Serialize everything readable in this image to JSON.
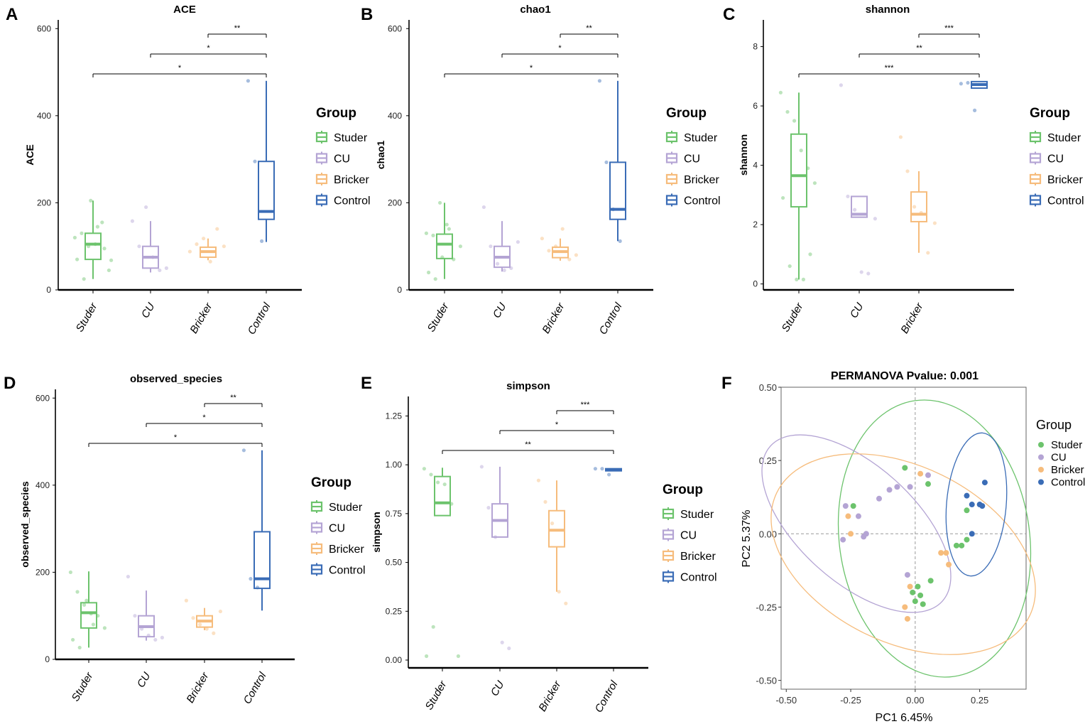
{
  "colors": {
    "Studer": "#6cc36c",
    "CU": "#b4a4d4",
    "Bricker": "#f6bc7c",
    "Control": "#3a6cb6"
  },
  "groups": [
    "Studer",
    "CU",
    "Bricker",
    "Control"
  ],
  "chart_data": [
    {
      "type": "box",
      "panel": "A",
      "title": "ACE",
      "ylabel": "ACE",
      "ylim": [
        0,
        620
      ],
      "yticks": [
        0,
        200,
        400,
        600
      ],
      "categories": [
        "Studer",
        "CU",
        "Bricker",
        "Control"
      ],
      "boxes": [
        {
          "group": "Studer",
          "min": 25,
          "q1": 70,
          "median": 105,
          "q3": 130,
          "max": 205
        },
        {
          "group": "CU",
          "min": 40,
          "q1": 50,
          "median": 75,
          "q3": 100,
          "max": 158
        },
        {
          "group": "Bricker",
          "min": 68,
          "q1": 75,
          "median": 88,
          "q3": 98,
          "max": 118
        },
        {
          "group": "Control",
          "min": 110,
          "q1": 162,
          "median": 180,
          "q3": 295,
          "max": 480
        }
      ],
      "points": [
        {
          "group": "Studer",
          "y": [
            120,
            130,
            100,
            105,
            155,
            45,
            70,
            25,
            205,
            145,
            95,
            68
          ]
        },
        {
          "group": "CU",
          "y": [
            158,
            100,
            190,
            75,
            45,
            50
          ]
        },
        {
          "group": "Bricker",
          "y": [
            88,
            105,
            118,
            65,
            140,
            100
          ]
        },
        {
          "group": "Control",
          "y": [
            480,
            295,
            112
          ]
        }
      ],
      "significance": [
        {
          "from": "Control",
          "to": "Bricker",
          "label": "**"
        },
        {
          "from": "Control",
          "to": "CU",
          "label": "*"
        },
        {
          "from": "Control",
          "to": "Studer",
          "label": "*"
        }
      ],
      "legend_title": "Group",
      "legend": [
        "Studer",
        "CU",
        "Bricker",
        "Control"
      ]
    },
    {
      "type": "box",
      "panel": "B",
      "title": "chao1",
      "ylabel": "chao1",
      "ylim": [
        0,
        620
      ],
      "yticks": [
        0,
        200,
        400,
        600
      ],
      "categories": [
        "Studer",
        "CU",
        "Bricker",
        "Control"
      ],
      "boxes": [
        {
          "group": "Studer",
          "min": 25,
          "q1": 72,
          "median": 105,
          "q3": 128,
          "max": 200
        },
        {
          "group": "CU",
          "min": 42,
          "q1": 52,
          "median": 75,
          "q3": 100,
          "max": 158
        },
        {
          "group": "Bricker",
          "min": 67,
          "q1": 74,
          "median": 88,
          "q3": 98,
          "max": 118
        },
        {
          "group": "Control",
          "min": 112,
          "q1": 162,
          "median": 185,
          "q3": 293,
          "max": 480
        }
      ],
      "points": [
        {
          "group": "Studer",
          "y": [
            130,
            125,
            200,
            150,
            70,
            100,
            40,
            25,
            75,
            140
          ]
        },
        {
          "group": "CU",
          "y": [
            190,
            100,
            60,
            45,
            50,
            110
          ]
        },
        {
          "group": "Bricker",
          "y": [
            118,
            90,
            100,
            140,
            70,
            80
          ]
        },
        {
          "group": "Control",
          "y": [
            480,
            293,
            185,
            112
          ]
        }
      ],
      "significance": [
        {
          "from": "Control",
          "to": "Bricker",
          "label": "**"
        },
        {
          "from": "Control",
          "to": "CU",
          "label": "*"
        },
        {
          "from": "Control",
          "to": "Studer",
          "label": "*"
        }
      ],
      "legend_title": "Group",
      "legend": [
        "Studer",
        "CU",
        "Bricker",
        "Control"
      ]
    },
    {
      "type": "box",
      "panel": "C",
      "title": "shannon",
      "ylabel": "shannon",
      "ylim": [
        -0.2,
        8.9
      ],
      "yticks": [
        0,
        2,
        4,
        6,
        8
      ],
      "categories": [
        "Studer",
        "CU",
        "Bricker"
      ],
      "boxes": [
        {
          "group": "Studer",
          "min": 0.15,
          "q1": 2.6,
          "median": 3.65,
          "q3": 5.05,
          "max": 6.45
        },
        {
          "group": "CU",
          "min": 2.25,
          "q1": 2.25,
          "median": 2.35,
          "q3": 2.95,
          "max": 2.95
        },
        {
          "group": "Bricker",
          "min": 1.05,
          "q1": 2.1,
          "median": 2.35,
          "q3": 3.1,
          "max": 3.8
        },
        {
          "group": "Control",
          "min": 6.6,
          "q1": 6.6,
          "median": 6.72,
          "q3": 6.82,
          "max": 6.82
        }
      ],
      "points": [
        {
          "group": "Studer",
          "y": [
            6.45,
            5.8,
            5.5,
            4.5,
            3.9,
            3.4,
            2.9,
            0.6,
            0.15,
            0.15,
            1.0
          ]
        },
        {
          "group": "CU",
          "y": [
            6.7,
            2.95,
            2.5,
            0.4,
            0.35,
            2.2
          ]
        },
        {
          "group": "Bricker",
          "y": [
            4.95,
            3.8,
            2.6,
            2.4,
            1.05,
            2.05
          ]
        },
        {
          "group": "Control",
          "y": [
            6.75,
            6.78,
            5.85
          ]
        }
      ],
      "significance": [
        {
          "from": "Control",
          "to": "Bricker",
          "label": "***"
        },
        {
          "from": "Control",
          "to": "CU",
          "label": "**"
        },
        {
          "from": "Control",
          "to": "Studer",
          "label": "***"
        }
      ],
      "legend_title": "Group",
      "legend": [
        "Studer",
        "CU",
        "Bricker",
        "Control"
      ]
    },
    {
      "type": "box",
      "panel": "D",
      "title": "observed_species",
      "ylabel": "observed_species",
      "ylim": [
        0,
        620
      ],
      "yticks": [
        0,
        200,
        400,
        600
      ],
      "categories": [
        "Studer",
        "CU",
        "Bricker",
        "Control"
      ],
      "boxes": [
        {
          "group": "Studer",
          "min": 27,
          "q1": 72,
          "median": 107,
          "q3": 130,
          "max": 202
        },
        {
          "group": "CU",
          "min": 43,
          "q1": 52,
          "median": 75,
          "q3": 100,
          "max": 158
        },
        {
          "group": "Bricker",
          "min": 67,
          "q1": 74,
          "median": 88,
          "q3": 100,
          "max": 118
        },
        {
          "group": "Control",
          "min": 112,
          "q1": 163,
          "median": 185,
          "q3": 293,
          "max": 480
        }
      ],
      "points": [
        {
          "group": "Studer",
          "y": [
            200,
            155,
            125,
            105,
            100,
            72,
            45,
            27,
            135,
            80
          ]
        },
        {
          "group": "CU",
          "y": [
            190,
            100,
            70,
            55,
            45,
            50
          ]
        },
        {
          "group": "Bricker",
          "y": [
            135,
            95,
            80,
            70,
            60,
            110
          ]
        },
        {
          "group": "Control",
          "y": [
            480,
            185,
            165
          ]
        }
      ],
      "significance": [
        {
          "from": "Control",
          "to": "Bricker",
          "label": "**"
        },
        {
          "from": "Control",
          "to": "CU",
          "label": "*"
        },
        {
          "from": "Control",
          "to": "Studer",
          "label": "*"
        }
      ],
      "legend_title": "Group",
      "legend": [
        "Studer",
        "CU",
        "Bricker",
        "Control"
      ]
    },
    {
      "type": "box",
      "panel": "E",
      "title": "simpson",
      "ylabel": "simpson",
      "ylim": [
        -0.04,
        1.35
      ],
      "yticks": [
        0.0,
        0.25,
        0.5,
        0.75,
        1.0,
        1.25
      ],
      "ytick_labels": [
        "0.00",
        "0.25",
        "0.50",
        "0.75",
        "1.00",
        "1.25"
      ],
      "categories": [
        "Studer",
        "CU",
        "Bricker",
        "Control"
      ],
      "boxes": [
        {
          "group": "Studer",
          "min": 0.74,
          "q1": 0.74,
          "median": 0.805,
          "q3": 0.94,
          "max": 0.985
        },
        {
          "group": "CU",
          "min": 0.63,
          "q1": 0.63,
          "median": 0.715,
          "q3": 0.8,
          "max": 0.99
        },
        {
          "group": "Bricker",
          "min": 0.35,
          "q1": 0.58,
          "median": 0.665,
          "q3": 0.765,
          "max": 0.92
        },
        {
          "group": "Control",
          "min": 0.97,
          "q1": 0.97,
          "median": 0.975,
          "q3": 0.98,
          "max": 0.98
        }
      ],
      "points": [
        {
          "group": "Studer",
          "y": [
            0.98,
            0.95,
            0.91,
            0.9,
            0.8,
            0.02,
            0.02,
            0.17
          ]
        },
        {
          "group": "CU",
          "y": [
            0.99,
            0.78,
            0.63,
            0.09,
            0.06
          ]
        },
        {
          "group": "Bricker",
          "y": [
            0.92,
            0.81,
            0.7,
            0.35,
            0.29
          ]
        },
        {
          "group": "Control",
          "y": [
            0.98,
            0.98,
            0.95
          ]
        }
      ],
      "significance": [
        {
          "from": "Control",
          "to": "Bricker",
          "label": "***"
        },
        {
          "from": "Control",
          "to": "CU",
          "label": "*"
        },
        {
          "from": "Control",
          "to": "Studer",
          "label": "**"
        }
      ],
      "legend_title": "Group",
      "legend": [
        "Studer",
        "CU",
        "Bricker",
        "Control"
      ]
    },
    {
      "type": "scatter",
      "panel": "F",
      "title": "PERMANOVA Pvalue: 0.001",
      "xlabel": "PC1 6.45%",
      "ylabel": "PC2 5.37%",
      "xlim": [
        -0.52,
        0.43
      ],
      "ylim": [
        -0.53,
        0.5
      ],
      "xticks": [
        -0.5,
        -0.25,
        0.0,
        0.25
      ],
      "xtick_labels": [
        "-0.50",
        "-0.25",
        "0.00",
        "0.25"
      ],
      "yticks": [
        -0.5,
        -0.25,
        0.0,
        0.25,
        0.5
      ],
      "ytick_labels": [
        "-0.50",
        "-0.25",
        "0.00",
        "0.25",
        "0.50"
      ],
      "series": [
        {
          "name": "Studer",
          "x": [
            -0.24,
            -0.04,
            0.05,
            0.2,
            0.16,
            0.18,
            0.2,
            0.06,
            0.01,
            -0.01,
            0.0,
            0.02,
            0.03
          ],
          "y": [
            0.095,
            0.225,
            0.17,
            0.08,
            -0.04,
            -0.04,
            -0.02,
            -0.16,
            -0.18,
            -0.2,
            -0.23,
            -0.21,
            -0.24
          ]
        },
        {
          "name": "CU",
          "x": [
            -0.27,
            -0.22,
            -0.2,
            -0.19,
            -0.14,
            -0.1,
            -0.07,
            -0.02,
            -0.28,
            0.05,
            -0.03
          ],
          "y": [
            0.095,
            0.06,
            -0.01,
            0.0,
            0.12,
            0.15,
            0.16,
            0.16,
            -0.02,
            0.2,
            -0.14
          ]
        },
        {
          "name": "Bricker",
          "x": [
            -0.26,
            -0.25,
            0.02,
            0.1,
            0.12,
            0.13,
            -0.02,
            -0.04,
            -0.03
          ],
          "y": [
            0.06,
            0.0,
            0.205,
            -0.065,
            -0.065,
            -0.105,
            -0.18,
            -0.25,
            -0.29
          ]
        },
        {
          "name": "Control",
          "x": [
            0.2,
            0.22,
            0.25,
            0.26,
            0.27,
            0.22
          ],
          "y": [
            0.13,
            0.1,
            0.1,
            0.095,
            0.175,
            0.0
          ]
        }
      ],
      "legend_title": "Group",
      "legend": [
        "Studer",
        "CU",
        "Bricker",
        "Control"
      ]
    }
  ]
}
